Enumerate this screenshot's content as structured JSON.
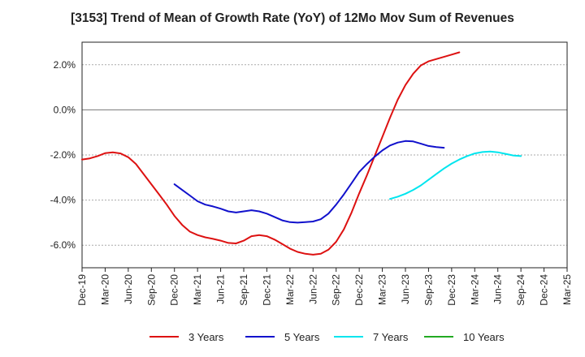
{
  "chart_data": {
    "type": "line",
    "title": "[3153]  Trend of Mean of Growth Rate (YoY) of 12Mo Mov Sum of Revenues",
    "xlabel": "",
    "ylabel": "",
    "ylim": [
      -7.0,
      3.0
    ],
    "yticks": [
      2.0,
      0.0,
      -2.0,
      -4.0,
      -6.0
    ],
    "ytick_labels": [
      "2.0%",
      "0.0%",
      "-2.0%",
      "-4.0%",
      "-6.0%"
    ],
    "grid": true,
    "legend_position": "bottom",
    "x_tick_labels": [
      "Dec-19",
      "Mar-20",
      "Jun-20",
      "Sep-20",
      "Dec-20",
      "Mar-21",
      "Jun-21",
      "Sep-21",
      "Dec-21",
      "Mar-22",
      "Jun-22",
      "Sep-22",
      "Dec-22",
      "Mar-23",
      "Jun-23",
      "Sep-23",
      "Dec-23",
      "Mar-24",
      "Jun-24",
      "Sep-24",
      "Dec-24",
      "Mar-25"
    ],
    "series": [
      {
        "name": "3 Years",
        "color": "#dd1111",
        "start_index": 0,
        "values": [
          -2.2,
          -2.15,
          -2.05,
          -1.92,
          -1.88,
          -1.93,
          -2.1,
          -2.4,
          -2.85,
          -3.3,
          -3.75,
          -4.2,
          -4.7,
          -5.1,
          -5.4,
          -5.55,
          -5.65,
          -5.72,
          -5.8,
          -5.9,
          -5.92,
          -5.8,
          -5.6,
          -5.55,
          -5.6,
          -5.75,
          -5.95,
          -6.15,
          -6.3,
          -6.38,
          -6.42,
          -6.38,
          -6.2,
          -5.85,
          -5.3,
          -4.55,
          -3.7,
          -2.9,
          -2.05,
          -1.2,
          -0.35,
          0.45,
          1.1,
          1.6,
          1.97,
          2.15,
          2.25,
          2.35,
          2.45,
          2.55
        ]
      },
      {
        "name": "5 Years",
        "color": "#1111cc",
        "start_index": 12,
        "values": [
          -3.3,
          -3.55,
          -3.8,
          -4.05,
          -4.2,
          -4.28,
          -4.38,
          -4.5,
          -4.55,
          -4.5,
          -4.45,
          -4.5,
          -4.6,
          -4.75,
          -4.9,
          -4.98,
          -5.0,
          -4.98,
          -4.95,
          -4.85,
          -4.6,
          -4.2,
          -3.75,
          -3.25,
          -2.75,
          -2.4,
          -2.08,
          -1.8,
          -1.58,
          -1.45,
          -1.38,
          -1.4,
          -1.5,
          -1.6,
          -1.65,
          -1.68
        ]
      },
      {
        "name": "7 Years",
        "color": "#00e5ee",
        "start_index": 40,
        "values": [
          -3.95,
          -3.85,
          -3.72,
          -3.55,
          -3.35,
          -3.1,
          -2.85,
          -2.6,
          -2.38,
          -2.2,
          -2.05,
          -1.93,
          -1.87,
          -1.85,
          -1.88,
          -1.95,
          -2.02,
          -2.05
        ]
      },
      {
        "name": "10 Years",
        "color": "#22aa22",
        "start_index": 0,
        "values": []
      }
    ]
  }
}
